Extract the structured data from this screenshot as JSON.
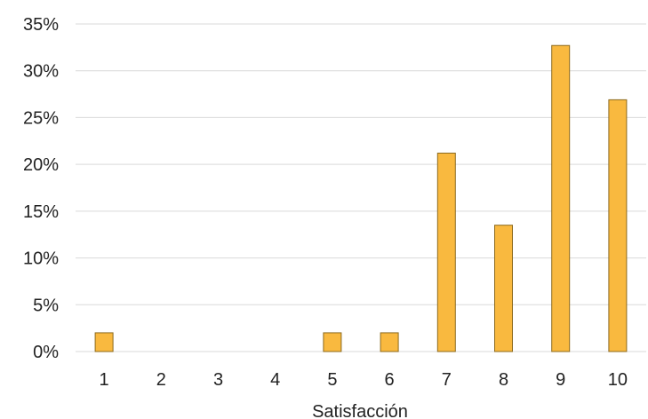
{
  "chart_data": {
    "type": "bar",
    "title": "",
    "xlabel": "Satisfacción",
    "ylabel": "",
    "categories": [
      "1",
      "2",
      "3",
      "4",
      "5",
      "6",
      "7",
      "8",
      "9",
      "10"
    ],
    "values": [
      2,
      0,
      0,
      0,
      2,
      2,
      21.2,
      13.5,
      32.7,
      26.9
    ],
    "y_ticks": [
      "0%",
      "5%",
      "10%",
      "15%",
      "20%",
      "25%",
      "30%",
      "35%"
    ],
    "y_tick_values": [
      0,
      5,
      10,
      15,
      20,
      25,
      30,
      35
    ],
    "ylim": [
      0,
      35
    ],
    "grid": true,
    "legend": "none",
    "colors": {
      "bar_fill": "#F9B93F",
      "bar_stroke": "#8C6A1E",
      "grid": "#D9D9D9"
    }
  }
}
